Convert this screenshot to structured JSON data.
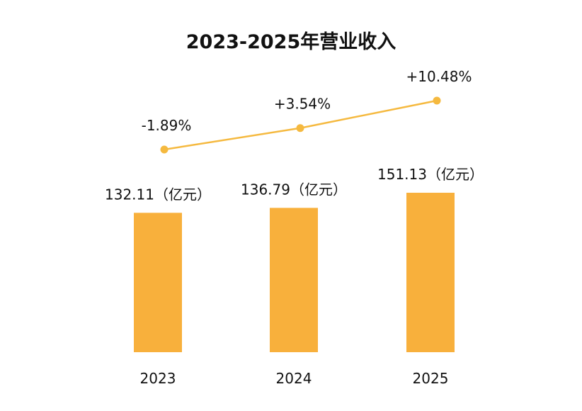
{
  "colors": {
    "bar": "#F8B03C",
    "line": "#F5B93F",
    "text": "#111111",
    "background": "#FFFFFF"
  },
  "chart_data": {
    "type": "bar",
    "title": "2023-2025年营业收入",
    "categories": [
      "2023",
      "2024",
      "2025"
    ],
    "series": [
      {
        "type": "bar",
        "values": [
          132.11,
          136.79,
          151.13
        ],
        "labels": [
          "132.11（亿元）",
          "136.79（亿元）",
          "151.13（亿元）"
        ]
      },
      {
        "type": "line",
        "values": [
          -1.89,
          3.54,
          10.48
        ],
        "labels": [
          "-1.89%",
          "+3.54%",
          "+10.48%"
        ]
      }
    ],
    "grid": false,
    "legend": "none"
  }
}
